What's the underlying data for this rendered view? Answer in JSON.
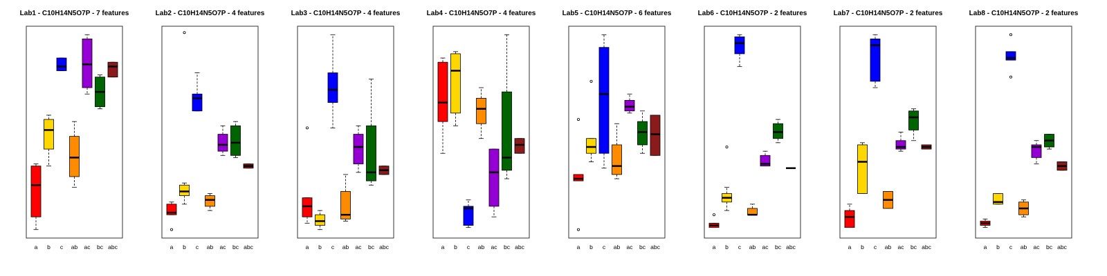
{
  "chart_data": [
    {
      "type": "box",
      "title": "Lab1 - C10H14N5O7P - 7 features",
      "categories": [
        "a",
        "b",
        "c",
        "ab",
        "ac",
        "bc",
        "abc"
      ],
      "colors": [
        "#ff0000",
        "#ffd700",
        "#0000ff",
        "#ff8c00",
        "#9400d3",
        "#006400",
        "#8b1a1a"
      ],
      "ylim": [
        0,
        100
      ],
      "boxes": [
        {
          "low": 4,
          "q1": 10,
          "median": 25,
          "q3": 34,
          "high": 35,
          "outliers": []
        },
        {
          "low": 34,
          "q1": 42,
          "median": 51,
          "q3": 56,
          "high": 58,
          "outliers": []
        },
        {
          "low": 79,
          "q1": 79,
          "median": 81,
          "q3": 85,
          "high": 85,
          "outliers": []
        },
        {
          "low": 24,
          "q1": 29,
          "median": 38,
          "q3": 48,
          "high": 55,
          "outliers": []
        },
        {
          "low": 68,
          "q1": 71,
          "median": 82,
          "q3": 94,
          "high": 96,
          "outliers": []
        },
        {
          "low": 61,
          "q1": 62,
          "median": 69,
          "q3": 76,
          "high": 77,
          "outliers": []
        },
        {
          "low": 76,
          "q1": 76,
          "median": 81,
          "q3": 83,
          "high": 83,
          "outliers": []
        }
      ]
    },
    {
      "type": "box",
      "title": "Lab2 - C10H14N5O7P - 4 features",
      "categories": [
        "a",
        "b",
        "c",
        "ab",
        "ac",
        "bc",
        "abc"
      ],
      "colors": [
        "#ff0000",
        "#ffd700",
        "#0000ff",
        "#ff8c00",
        "#9400d3",
        "#006400",
        "#8b1a1a"
      ],
      "ylim": [
        0,
        100
      ],
      "boxes": [
        {
          "low": 11,
          "q1": 11,
          "median": 12,
          "q3": 16,
          "high": 17,
          "outliers": [
            4
          ]
        },
        {
          "low": 16,
          "q1": 20,
          "median": 22,
          "q3": 25,
          "high": 26,
          "outliers": [
            97
          ]
        },
        {
          "low": 60,
          "q1": 60,
          "median": 66,
          "q3": 68,
          "high": 78,
          "outliers": []
        },
        {
          "low": 13,
          "q1": 15,
          "median": 18,
          "q3": 20,
          "high": 21,
          "outliers": []
        },
        {
          "low": 39,
          "q1": 41,
          "median": 44,
          "q3": 49,
          "high": 53,
          "outliers": []
        },
        {
          "low": 38,
          "q1": 39,
          "median": 45,
          "q3": 53,
          "high": 55,
          "outliers": []
        },
        {
          "low": 33,
          "q1": 33,
          "median": 34,
          "q3": 35,
          "high": 35,
          "outliers": []
        }
      ]
    },
    {
      "type": "box",
      "title": "Lab3 - C10H14N5O7P - 4 features",
      "categories": [
        "a",
        "b",
        "c",
        "ab",
        "ac",
        "bc",
        "abc"
      ],
      "colors": [
        "#ff0000",
        "#ffd700",
        "#0000ff",
        "#ff8c00",
        "#9400d3",
        "#006400",
        "#8b1a1a"
      ],
      "ylim": [
        0,
        100
      ],
      "boxes": [
        {
          "low": 7,
          "q1": 10,
          "median": 15,
          "q3": 19,
          "high": 19,
          "outliers": [
            52
          ]
        },
        {
          "low": 4,
          "q1": 6,
          "median": 8,
          "q3": 11,
          "high": 13,
          "outliers": []
        },
        {
          "low": 52,
          "q1": 64,
          "median": 70,
          "q3": 78,
          "high": 96,
          "outliers": []
        },
        {
          "low": 8,
          "q1": 9,
          "median": 11,
          "q3": 22,
          "high": 30,
          "outliers": []
        },
        {
          "low": 31,
          "q1": 35,
          "median": 43,
          "q3": 49,
          "high": 53,
          "outliers": []
        },
        {
          "low": 25,
          "q1": 27,
          "median": 31,
          "q3": 53,
          "high": 75,
          "outliers": []
        },
        {
          "low": 30,
          "q1": 30,
          "median": 32,
          "q3": 34,
          "high": 34,
          "outliers": []
        }
      ]
    },
    {
      "type": "box",
      "title": "Lab4 - C10H14N5O7P - 4 features",
      "categories": [
        "a",
        "b",
        "c",
        "ab",
        "ac",
        "bc",
        "abc"
      ],
      "colors": [
        "#ff0000",
        "#ffd700",
        "#0000ff",
        "#ff8c00",
        "#9400d3",
        "#006400",
        "#8b1a1a"
      ],
      "ylim": [
        0,
        100
      ],
      "boxes": [
        {
          "low": 40,
          "q1": 55,
          "median": 64,
          "q3": 83,
          "high": 85,
          "outliers": []
        },
        {
          "low": 53,
          "q1": 59,
          "median": 79,
          "q3": 87,
          "high": 88,
          "outliers": []
        },
        {
          "low": 5,
          "q1": 6,
          "median": 14,
          "q3": 15,
          "high": 18,
          "outliers": []
        },
        {
          "low": 47,
          "q1": 54,
          "median": 61,
          "q3": 66,
          "high": 71,
          "outliers": []
        },
        {
          "low": 10,
          "q1": 15,
          "median": 31,
          "q3": 42,
          "high": 42,
          "outliers": []
        },
        {
          "low": 28,
          "q1": 32,
          "median": 38,
          "q3": 69,
          "high": 96,
          "outliers": []
        },
        {
          "low": 40,
          "q1": 40,
          "median": 44,
          "q3": 47,
          "high": 47,
          "outliers": []
        }
      ]
    },
    {
      "type": "box",
      "title": "Lab5 - C10H14N5O7P - 6 features",
      "categories": [
        "a",
        "b",
        "c",
        "ab",
        "ac",
        "bc",
        "abc"
      ],
      "colors": [
        "#ff0000",
        "#ffd700",
        "#0000ff",
        "#ff8c00",
        "#9400d3",
        "#006400",
        "#8b1a1a"
      ],
      "ylim": [
        0,
        100
      ],
      "boxes": [
        {
          "low": 27,
          "q1": 27,
          "median": 28,
          "q3": 30,
          "high": 30,
          "outliers": [
            56,
            4
          ]
        },
        {
          "low": 36,
          "q1": 40,
          "median": 43,
          "q3": 47,
          "high": 47,
          "outliers": [
            74
          ]
        },
        {
          "low": 33,
          "q1": 40,
          "median": 68,
          "q3": 90,
          "high": 96,
          "outliers": []
        },
        {
          "low": 28,
          "q1": 30,
          "median": 34,
          "q3": 44,
          "high": 54,
          "outliers": []
        },
        {
          "low": 59,
          "q1": 60,
          "median": 62,
          "q3": 65,
          "high": 68,
          "outliers": []
        },
        {
          "low": 40,
          "q1": 44,
          "median": 50,
          "q3": 55,
          "high": 60,
          "outliers": []
        },
        {
          "low": 39,
          "q1": 39,
          "median": 49,
          "q3": 58,
          "high": 58,
          "outliers": []
        }
      ]
    },
    {
      "type": "box",
      "title": "Lab6 - C10H14N5O7P - 2 features",
      "categories": [
        "a",
        "b",
        "c",
        "ab",
        "ac",
        "bc",
        "abc"
      ],
      "colors": [
        "#ff0000",
        "#ffd700",
        "#0000ff",
        "#ff8c00",
        "#9400d3",
        "#006400",
        "#8b1a1a"
      ],
      "ylim": [
        0,
        100
      ],
      "boxes": [
        {
          "low": 5,
          "q1": 5,
          "median": 6,
          "q3": 7,
          "high": 7,
          "outliers": [
            11
          ]
        },
        {
          "low": 13,
          "q1": 17,
          "median": 19,
          "q3": 21,
          "high": 24,
          "outliers": [
            43
          ]
        },
        {
          "low": 81,
          "q1": 87,
          "median": 92,
          "q3": 95,
          "high": 96,
          "outliers": []
        },
        {
          "low": 11,
          "q1": 11,
          "median": 11,
          "q3": 14,
          "high": 16,
          "outliers": []
        },
        {
          "low": 34,
          "q1": 34,
          "median": 35,
          "q3": 39,
          "high": 41,
          "outliers": []
        },
        {
          "low": 45,
          "q1": 47,
          "median": 50,
          "q3": 54,
          "high": 56,
          "outliers": []
        },
        {
          "low": 33,
          "q1": 33,
          "median": 33,
          "q3": 33,
          "high": 33,
          "outliers": []
        }
      ]
    },
    {
      "type": "box",
      "title": "Lab7 - C10H14N5O7P - 2 features",
      "categories": [
        "a",
        "b",
        "c",
        "ab",
        "ac",
        "bc",
        "abc"
      ],
      "colors": [
        "#ff0000",
        "#ffd700",
        "#0000ff",
        "#ff8c00",
        "#9400d3",
        "#006400",
        "#8b1a1a"
      ],
      "ylim": [
        0,
        100
      ],
      "boxes": [
        {
          "low": 5,
          "q1": 5,
          "median": 10,
          "q3": 13,
          "high": 16,
          "outliers": []
        },
        {
          "low": 21,
          "q1": 21,
          "median": 36,
          "q3": 44,
          "high": 45,
          "outliers": []
        },
        {
          "low": 71,
          "q1": 74,
          "median": 91,
          "q3": 94,
          "high": 96,
          "outliers": []
        },
        {
          "low": 14,
          "q1": 14,
          "median": 18,
          "q3": 22,
          "high": 22,
          "outliers": []
        },
        {
          "low": 41,
          "q1": 42,
          "median": 43,
          "q3": 46,
          "high": 50,
          "outliers": []
        },
        {
          "low": 46,
          "q1": 51,
          "median": 57,
          "q3": 60,
          "high": 61,
          "outliers": []
        },
        {
          "low": 42,
          "q1": 42,
          "median": 43,
          "q3": 44,
          "high": 44,
          "outliers": []
        }
      ]
    },
    {
      "type": "box",
      "title": "Lab8 - C10H14N5O7P - 2 features",
      "categories": [
        "a",
        "b",
        "c",
        "ab",
        "ac",
        "bc",
        "abc"
      ],
      "colors": [
        "#ff0000",
        "#ffd700",
        "#0000ff",
        "#ff8c00",
        "#9400d3",
        "#006400",
        "#8b1a1a"
      ],
      "ylim": [
        0,
        100
      ],
      "boxes": [
        {
          "low": 5,
          "q1": 6,
          "median": 7,
          "q3": 8,
          "high": 9,
          "outliers": []
        },
        {
          "low": 16,
          "q1": 16,
          "median": 17,
          "q3": 21,
          "high": 21,
          "outliers": []
        },
        {
          "low": 84,
          "q1": 84,
          "median": 85,
          "q3": 88,
          "high": 88,
          "outliers": [
            96,
            76
          ]
        },
        {
          "low": 10,
          "q1": 11,
          "median": 14,
          "q3": 17,
          "high": 18,
          "outliers": []
        },
        {
          "low": 35,
          "q1": 38,
          "median": 43,
          "q3": 44,
          "high": 46,
          "outliers": []
        },
        {
          "low": 42,
          "q1": 43,
          "median": 46,
          "q3": 49,
          "high": 49,
          "outliers": []
        },
        {
          "low": 32,
          "q1": 32,
          "median": 34,
          "q3": 36,
          "high": 36,
          "outliers": []
        }
      ]
    }
  ]
}
